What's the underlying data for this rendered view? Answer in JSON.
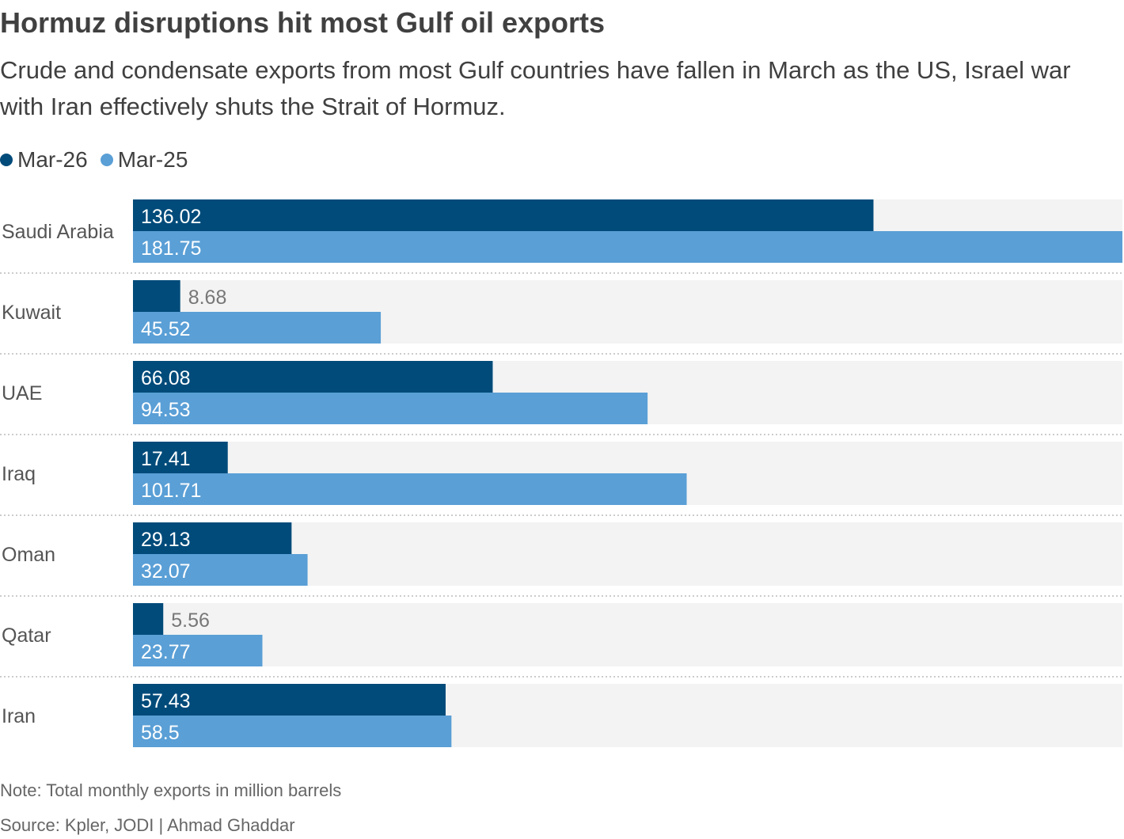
{
  "title": "Hormuz disruptions hit most Gulf oil exports",
  "subtitle": "Crude and condensate exports from most Gulf countries have fallen in March as the US, Israel war with Iran effectively shuts the Strait of Hormuz.",
  "note": "Note: Total monthly exports in million barrels",
  "source": "Source: Kpler, JODI | Ahmad Ghaddar",
  "colors": {
    "Mar-26": "#004b7a",
    "Mar-25": "#5a9fd6",
    "track": "#f3f3f3"
  },
  "chart_data": {
    "type": "bar",
    "orientation": "horizontal",
    "categories": [
      "Saudi Arabia",
      "Kuwait",
      "UAE",
      "Iraq",
      "Oman",
      "Qatar",
      "Iran"
    ],
    "series": [
      {
        "name": "Mar-26",
        "values": [
          136.02,
          8.68,
          66.08,
          17.41,
          29.13,
          5.56,
          57.43
        ]
      },
      {
        "name": "Mar-25",
        "values": [
          181.75,
          45.52,
          94.53,
          101.71,
          32.07,
          23.77,
          58.5
        ]
      }
    ],
    "xlim": [
      0,
      181.75
    ],
    "legend": "top-left",
    "grid": false,
    "data_labels": true
  }
}
